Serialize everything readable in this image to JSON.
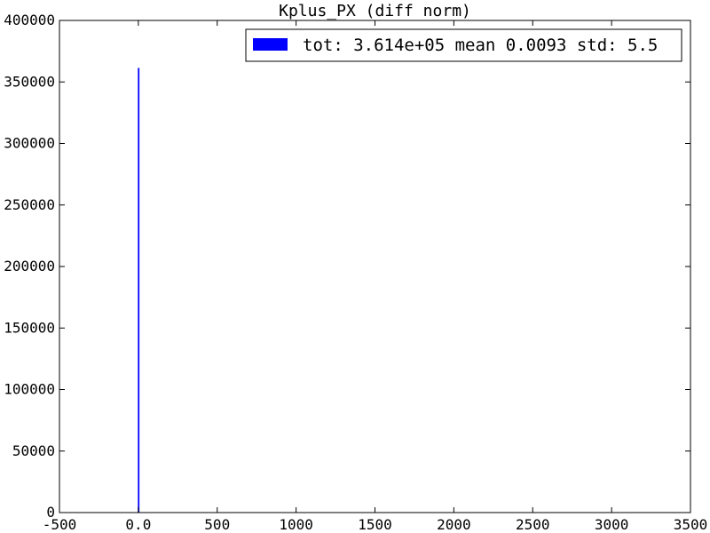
{
  "chart_data": {
    "type": "bar",
    "title": "Kplus_PX (diff norm)",
    "xlabel": "",
    "ylabel": "",
    "xlim": [
      -500,
      3500
    ],
    "ylim": [
      0,
      400000
    ],
    "x_ticks": [
      -500,
      0,
      500,
      1000,
      1500,
      2000,
      2500,
      3000,
      3500
    ],
    "x_tick_labels": [
      "-500",
      "0.0",
      "500",
      "1000",
      "1500",
      "2000",
      "2500",
      "3000",
      "3500"
    ],
    "y_ticks": [
      0,
      50000,
      100000,
      150000,
      200000,
      250000,
      300000,
      350000,
      400000
    ],
    "y_tick_labels": [
      "0",
      "50000",
      "100000",
      "150000",
      "200000",
      "250000",
      "300000",
      "350000",
      "400000"
    ],
    "grid": false,
    "legend_position": "top-right",
    "series": [
      {
        "name": "tot: 3.614e+05 mean 0.0093 std: 5.5",
        "color": "#0000ff",
        "bins": [
          {
            "x_start": -3,
            "x_end": 7,
            "count": 361400
          }
        ]
      }
    ]
  }
}
